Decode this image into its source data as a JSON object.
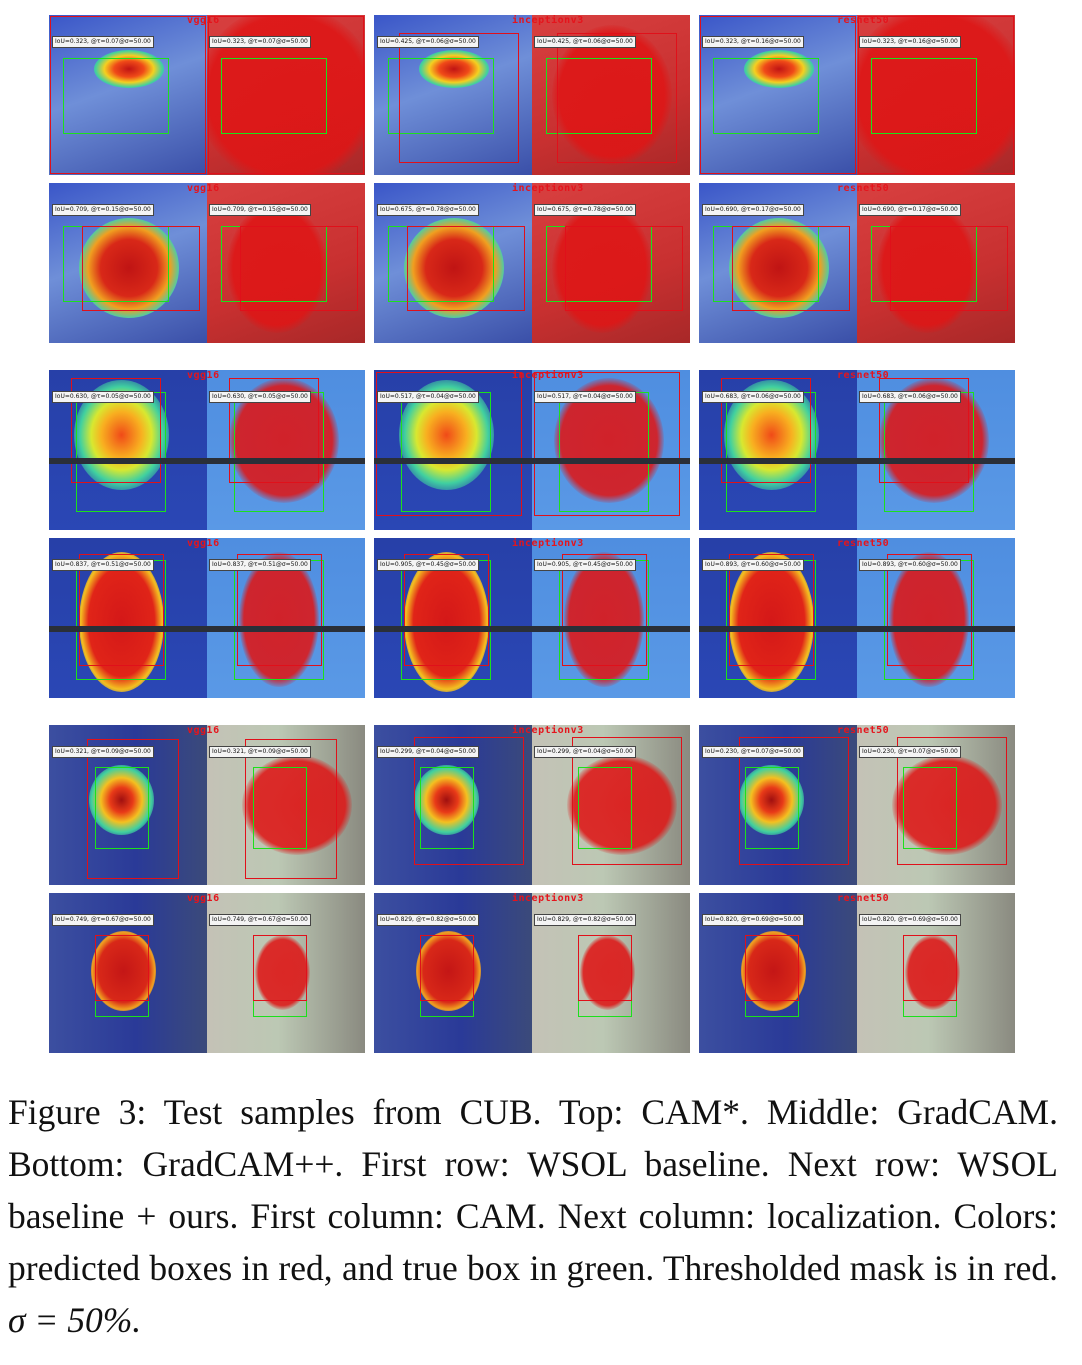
{
  "figure": {
    "caption": {
      "text": "Figure 3: Test samples from CUB. Top: CAM*. Middle: GradCAM. Bottom: GradCAM++. First row: WSOL baseline. Next row: WSOL baseline + ours. First column: CAM. Next column: localization. Colors: predicted boxes in red, and true box in green. Thresholded mask is in red.",
      "math": "σ = 50%."
    },
    "colors": {
      "gt_box": "#1ce01c",
      "pred_box": "#e0101a",
      "mask": "#e0101a"
    },
    "rows": [
      {
        "panels": [
          {
            "model": "vgg16",
            "label": "IoU=0.323, @τ=0.07@σ=50.00"
          },
          {
            "model": "inceptionv3",
            "label": "IoU=0.425, @τ=0.06@σ=50.00"
          },
          {
            "model": "resnet50",
            "label": "IoU=0.323, @τ=0.16@σ=50.00"
          }
        ]
      },
      {
        "panels": [
          {
            "model": "vgg16",
            "label": "IoU=0.709, @τ=0.15@σ=50.00"
          },
          {
            "model": "inceptionv3",
            "label": "IoU=0.675, @τ=0.78@σ=50.00"
          },
          {
            "model": "resnet50",
            "label": "IoU=0.690, @τ=0.17@σ=50.00"
          }
        ]
      },
      {
        "panels": [
          {
            "model": "vgg16",
            "label": "IoU=0.630, @τ=0.05@σ=50.00"
          },
          {
            "model": "inceptionv3",
            "label": "IoU=0.517, @τ=0.04@σ=50.00"
          },
          {
            "model": "resnet50",
            "label": "IoU=0.683, @τ=0.06@σ=50.00"
          }
        ]
      },
      {
        "panels": [
          {
            "model": "vgg16",
            "label": "IoU=0.837, @τ=0.51@σ=50.00"
          },
          {
            "model": "inceptionv3",
            "label": "IoU=0.905, @τ=0.45@σ=50.00"
          },
          {
            "model": "resnet50",
            "label": "IoU=0.893, @τ=0.60@σ=50.00"
          }
        ]
      },
      {
        "panels": [
          {
            "model": "vgg16",
            "label": "IoU=0.321, @τ=0.09@σ=50.00"
          },
          {
            "model": "inceptionv3",
            "label": "IoU=0.299, @τ=0.04@σ=50.00"
          },
          {
            "model": "resnet50",
            "label": "IoU=0.230, @τ=0.07@σ=50.00"
          }
        ]
      },
      {
        "panels": [
          {
            "model": "vgg16",
            "label": "IoU=0.749, @τ=0.67@σ=50.00"
          },
          {
            "model": "inceptionv3",
            "label": "IoU=0.829, @τ=0.82@σ=50.00"
          },
          {
            "model": "resnet50",
            "label": "IoU=0.820, @τ=0.69@σ=50.00"
          }
        ]
      }
    ]
  }
}
